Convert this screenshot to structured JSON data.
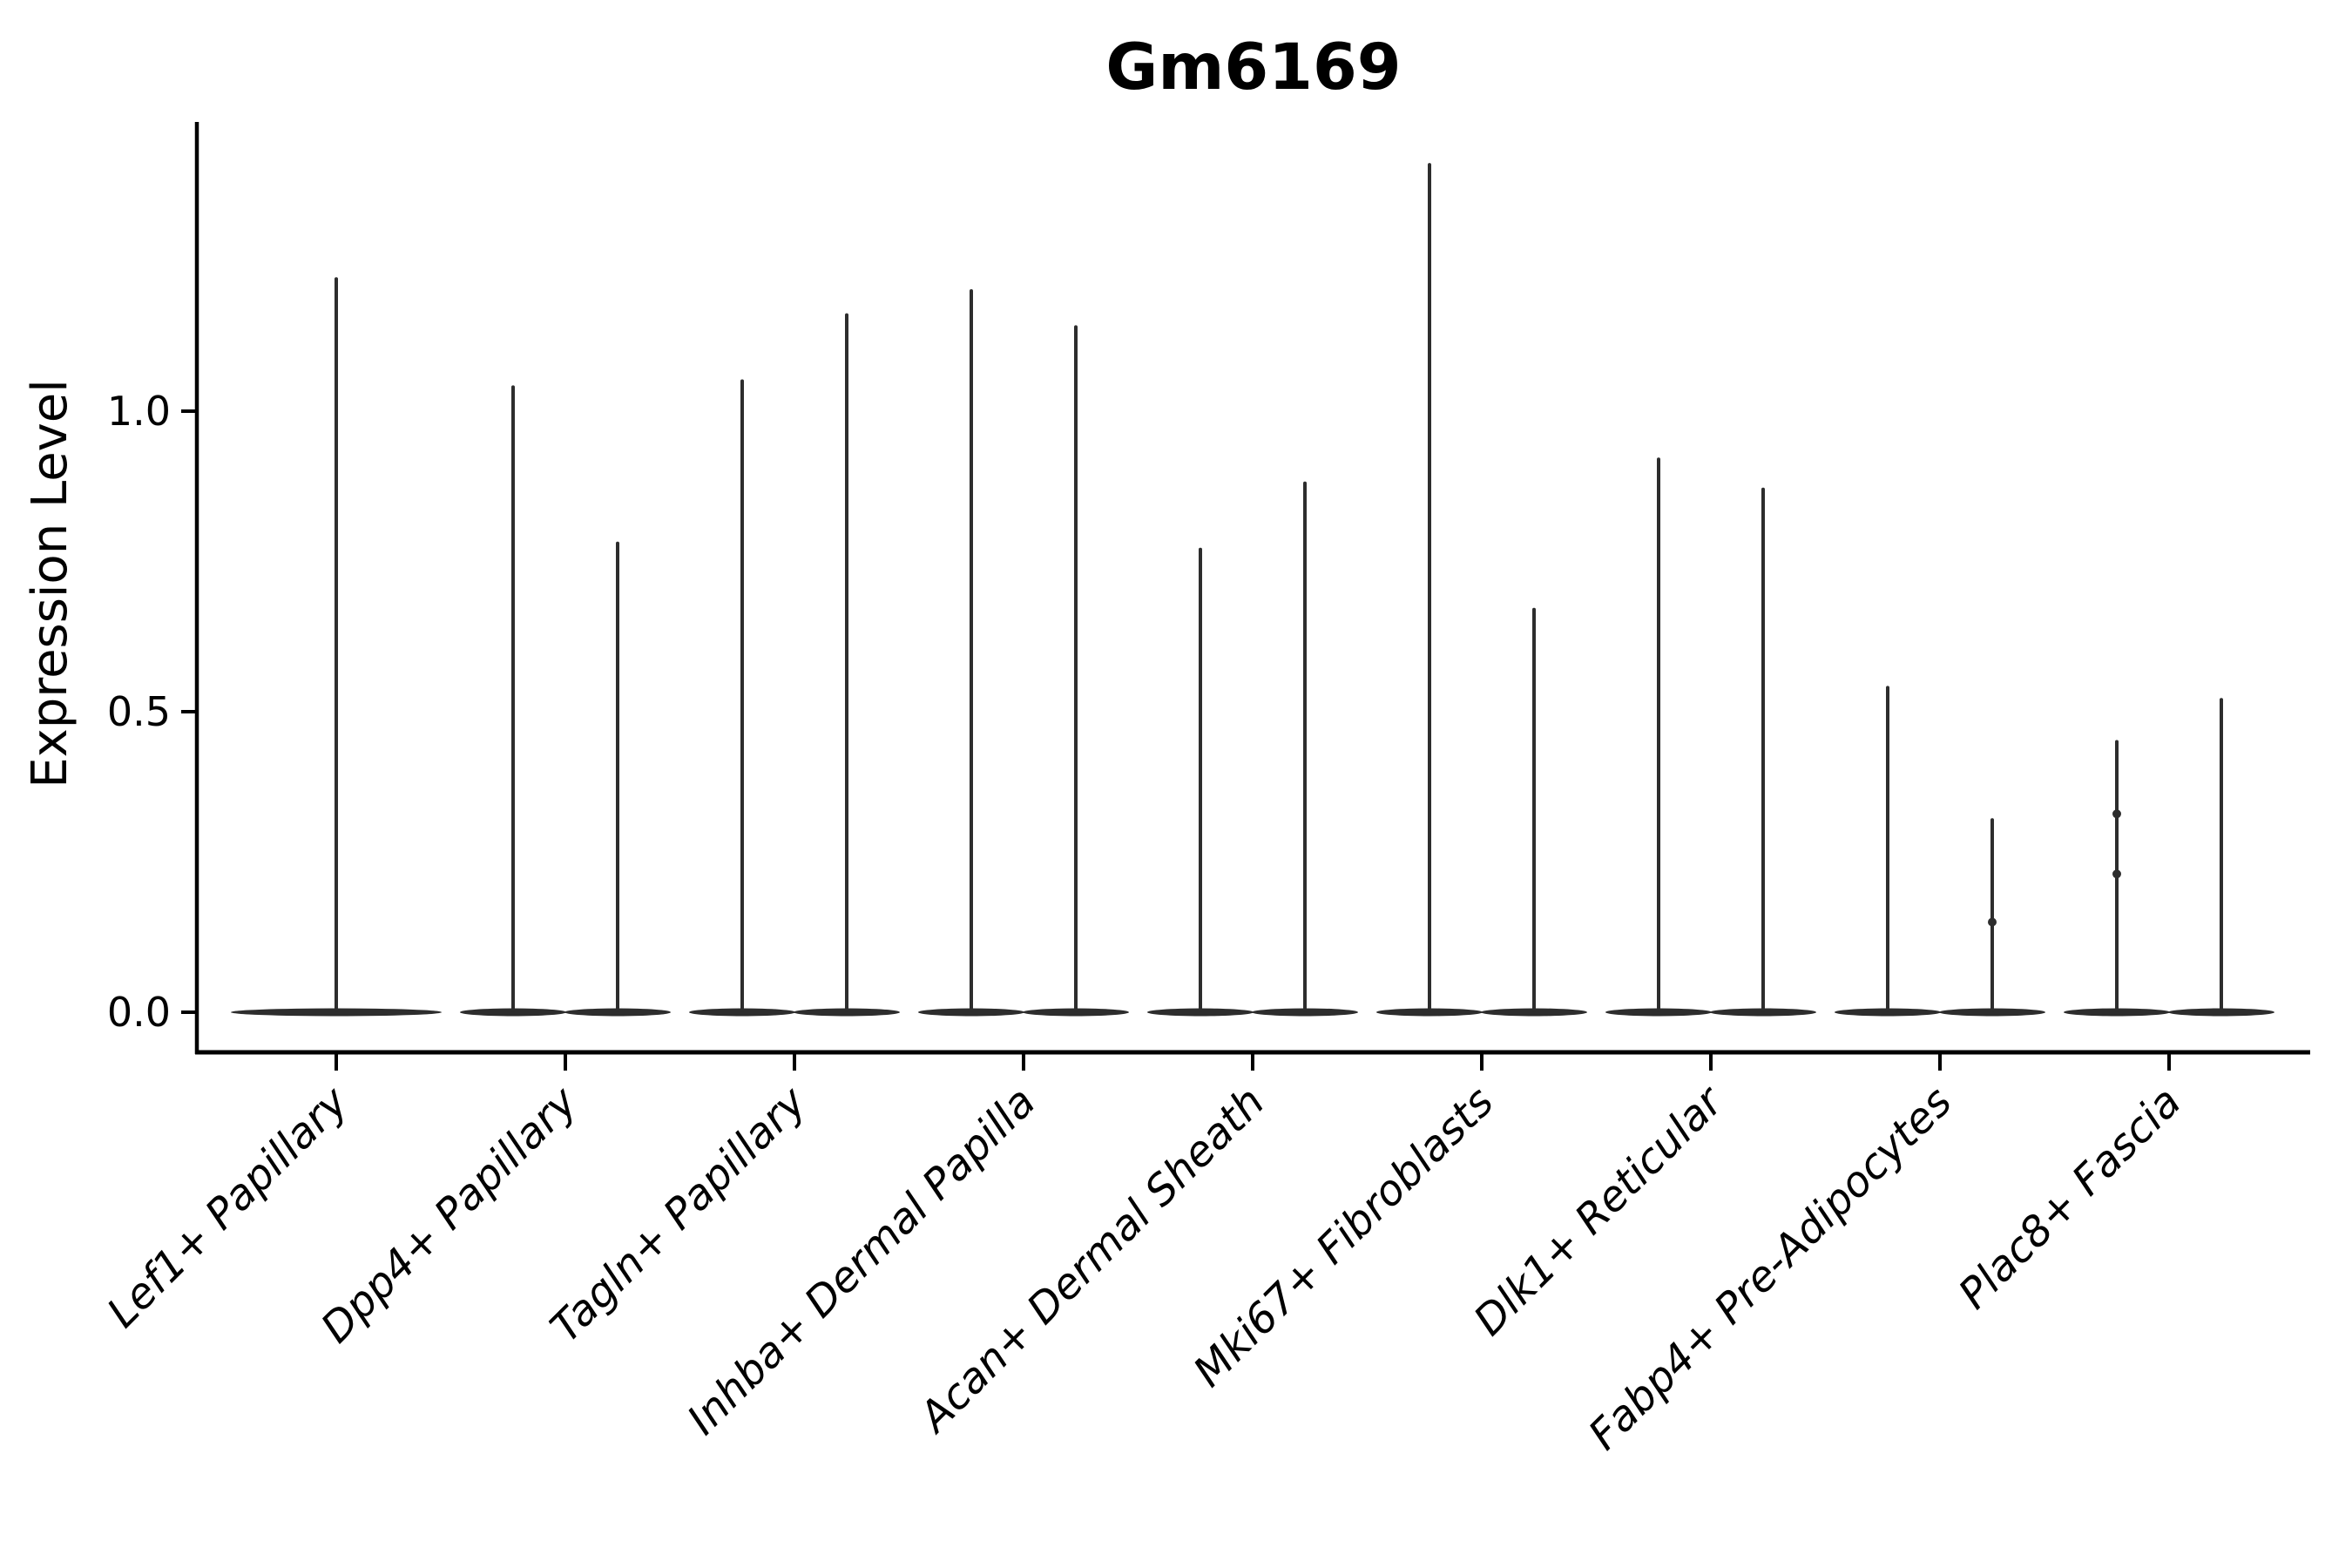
{
  "figure": {
    "title": "Gm6169"
  },
  "chart_data": {
    "type": "violin",
    "title": "Gm6169",
    "xlabel": "",
    "ylabel": "Expression Level",
    "ylim": [
      0,
      1.48
    ],
    "grid": false,
    "legend": "none",
    "yticks": [
      {
        "value": 0.0,
        "label": "0.0"
      },
      {
        "value": 0.5,
        "label": "0.5"
      },
      {
        "value": 1.0,
        "label": "1.0"
      }
    ],
    "categories": [
      "Lef1+ Papillary",
      "Dpp4+ Papillary",
      "Tagln+ Papillary",
      "Inhba+ Dermal Papilla",
      "Acan+ Dermal Sheath",
      "Mki67+ Fibroblasts",
      "Dlk1+ Reticular",
      "Fabp4+ Pre-Adipocytes",
      "Plac8+ Fascia"
    ],
    "violins": [
      {
        "category": "Lef1+ Papillary",
        "spike_maxima": [
          1.22
        ]
      },
      {
        "category": "Dpp4+ Papillary",
        "spike_maxima": [
          1.04,
          0.78
        ]
      },
      {
        "category": "Tagln+ Papillary",
        "spike_maxima": [
          1.05,
          1.16
        ]
      },
      {
        "category": "Inhba+ Dermal Papilla",
        "spike_maxima": [
          1.2,
          1.14
        ]
      },
      {
        "category": "Acan+ Dermal Sheath",
        "spike_maxima": [
          0.77,
          0.88
        ]
      },
      {
        "category": "Mki67+ Fibroblasts",
        "spike_maxima": [
          1.41,
          0.67
        ]
      },
      {
        "category": "Dlk1+ Reticular",
        "spike_maxima": [
          0.92,
          0.87
        ]
      },
      {
        "category": "Fabp4+ Pre-Adipocytes",
        "spike_maxima": [
          0.54,
          0.32
        ]
      },
      {
        "category": "Plac8+ Fascia",
        "spike_maxima": [
          0.45,
          0.52
        ]
      }
    ],
    "outlier_points": [
      {
        "category": "Fabp4+ Pre-Adipocytes",
        "spike": 1,
        "value": 0.15
      },
      {
        "category": "Plac8+ Fascia",
        "spike": 0,
        "value": 0.33
      },
      {
        "category": "Plac8+ Fascia",
        "spike": 0,
        "value": 0.23
      }
    ],
    "colors": {
      "violin": "#2d2d2d",
      "axis": "#000000",
      "text": "#000000",
      "background": "#ffffff"
    }
  }
}
